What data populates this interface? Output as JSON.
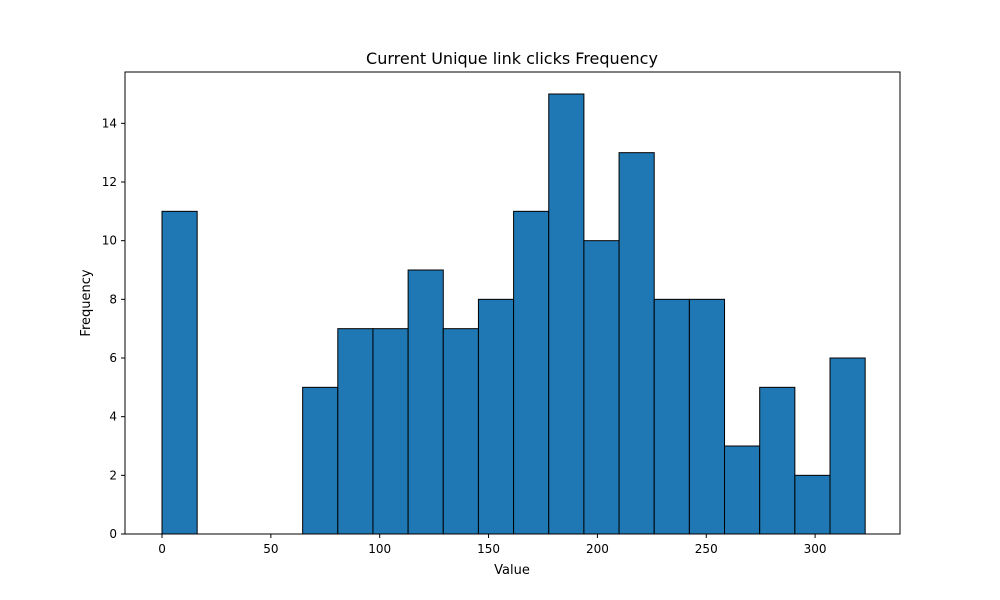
{
  "chart_data": {
    "type": "bar",
    "title": "Current Unique link clicks Frequency",
    "xlabel": "Value",
    "ylabel": "Frequency",
    "bar_color": "#1f77b4",
    "edge_color": "#000000",
    "xlim": [
      -17,
      339
    ],
    "ylim": [
      0,
      15.75
    ],
    "x_ticks": [
      0,
      50,
      100,
      150,
      200,
      250,
      300
    ],
    "y_ticks": [
      0,
      2,
      4,
      6,
      8,
      10,
      12,
      14
    ],
    "bin_start": 0,
    "bin_width": 16.15,
    "values": [
      11,
      0,
      0,
      0,
      5,
      7,
      7,
      9,
      7,
      8,
      11,
      15,
      10,
      13,
      8,
      8,
      3,
      5,
      2,
      6
    ],
    "grid": false,
    "legend": "none"
  }
}
